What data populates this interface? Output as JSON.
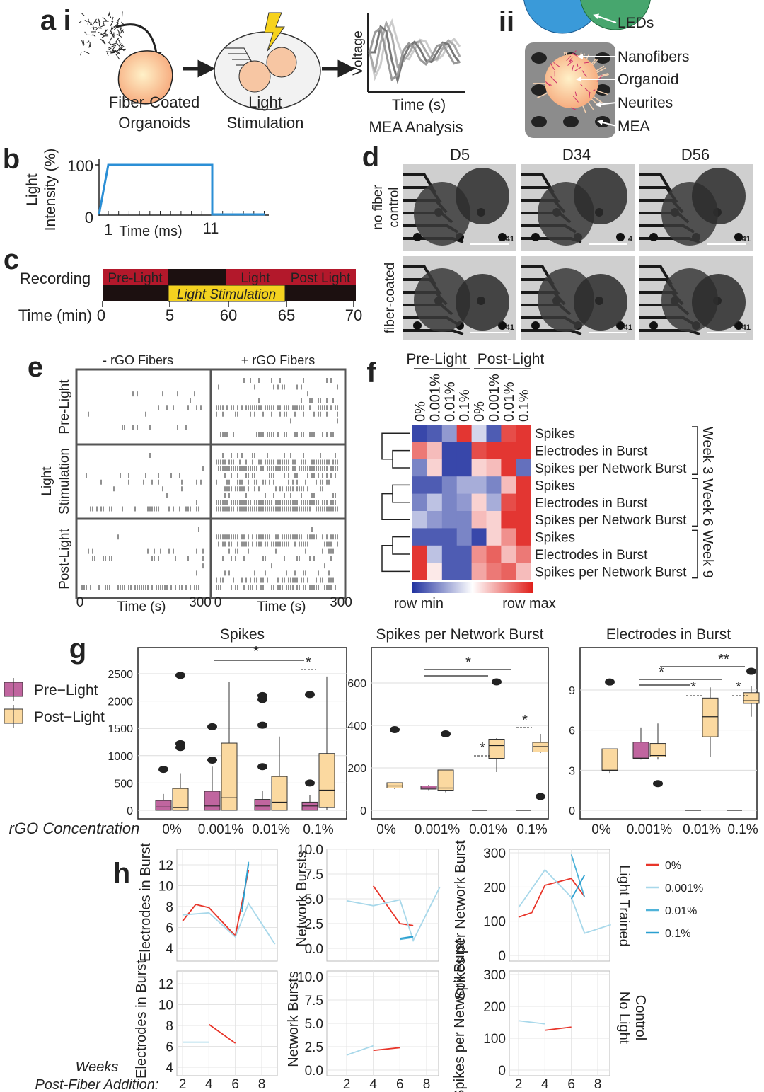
{
  "a": {
    "letter": "a",
    "sub_i": "i",
    "sub_ii": "ii",
    "organoids": [
      "Fiber-Coated",
      "Organoids"
    ],
    "stimulation": [
      "Light",
      "Stimulation"
    ],
    "voltage": "Voltage",
    "time": "Time (s)",
    "analysis": "MEA Analysis",
    "parts": [
      "LEDs",
      "Nanofibers",
      "Organoid",
      "Neurites",
      "MEA"
    ]
  },
  "b": {
    "letter": "b",
    "ylabel": [
      "Light",
      "Intensity (%)"
    ],
    "yticks": [
      "100",
      "0"
    ],
    "xticks": [
      "1",
      "11"
    ],
    "xlabel": "Time (ms)"
  },
  "c": {
    "letter": "c",
    "row": "Recording",
    "segments": [
      "Pre-Light",
      "Light Stimulation",
      "Light",
      "Post Light"
    ],
    "xlabel": "Time (min)",
    "xticks": [
      "0",
      "5",
      "60",
      "65",
      "70"
    ]
  },
  "d": {
    "letter": "d",
    "columns": [
      "D5",
      "D34",
      "D56"
    ],
    "rows": [
      [
        "no fiber",
        "control"
      ],
      [
        "fiber-coated"
      ]
    ],
    "scale_labels": [
      [
        "41",
        "4",
        "41"
      ],
      [
        "41",
        "41",
        "41"
      ]
    ]
  },
  "e": {
    "letter": "e",
    "columns": [
      "- rGO Fibers",
      "+ rGO Fibers"
    ],
    "rows": [
      [
        "Pre-Light"
      ],
      [
        "Light",
        "Stimulation"
      ],
      [
        "Post-Light"
      ]
    ],
    "xticks": [
      "0",
      "300"
    ],
    "xlabel": "Time (s)"
  },
  "f": {
    "letter": "f",
    "groups": [
      "Pre-Light",
      "Post-Light"
    ],
    "columns": [
      "0%",
      "0.001%",
      "0.01%",
      "0.1%"
    ],
    "rows": [
      "Spikes",
      "Electrodes in Burst",
      "Spikes per Network Burst"
    ],
    "weeks": [
      "Week 3",
      "Week 6",
      "Week 9"
    ],
    "scale": [
      "row min",
      "row max"
    ],
    "values": [
      [
        [
          -0.9,
          -0.8,
          -0.5,
          0.9,
          -0.2,
          -0.8,
          0.8,
          0.9
        ],
        [
          0.6,
          0.3,
          -0.9,
          -0.9,
          0.8,
          0.9,
          0.9,
          0.9
        ],
        [
          -0.6,
          0.2,
          -0.9,
          -0.9,
          0.2,
          0.3,
          0.9,
          -0.7
        ]
      ],
      [
        [
          -0.8,
          -0.8,
          -0.6,
          -0.4,
          -0.4,
          -0.6,
          0.3,
          0.9
        ],
        [
          -0.6,
          -0.3,
          -0.6,
          -0.5,
          0.2,
          -0.4,
          0.8,
          0.9
        ],
        [
          -0.3,
          -0.5,
          -0.6,
          -0.6,
          0.3,
          0.2,
          0.9,
          0.9
        ]
      ],
      [
        [
          -0.8,
          -0.8,
          -0.8,
          -0.6,
          -0.9,
          0.2,
          0.5,
          0.9
        ],
        [
          0.9,
          -0.3,
          -0.8,
          -0.8,
          0.5,
          0.7,
          0.3,
          0.6
        ],
        [
          0.9,
          0.1,
          -0.8,
          -0.8,
          0.4,
          0.6,
          0.7,
          0.3
        ]
      ]
    ]
  },
  "g": {
    "letter": "g",
    "legend": [
      "Pre−Light",
      "Post−Light"
    ],
    "colors": [
      "#c0659f",
      "#fbd9a0"
    ],
    "xlabel": "rGO Concentration",
    "categories": [
      "0%",
      "0.001%",
      "0.01%",
      "0.1%"
    ],
    "plots": [
      {
        "title": "Spikes",
        "yticks": [
          0,
          500,
          1000,
          1500,
          2000,
          2500
        ],
        "pre": [
          [
            0,
            0,
            60,
            180,
            300
          ],
          [
            0,
            0,
            80,
            350,
            800
          ],
          [
            0,
            0,
            80,
            200,
            350
          ],
          [
            0,
            0,
            80,
            150,
            280
          ]
        ],
        "post": [
          [
            0,
            0,
            50,
            400,
            680
          ],
          [
            0,
            0,
            230,
            1230,
            2350
          ],
          [
            0,
            0,
            150,
            620,
            1350
          ],
          [
            0,
            50,
            370,
            1040,
            2450
          ]
        ],
        "pre_outliers": [
          [
            750
          ],
          [
            920,
            1530
          ],
          [
            800,
            1560,
            2030,
            2100
          ],
          [
            500,
            2120
          ]
        ],
        "post_outliers": [
          [
            1150,
            1220,
            2470
          ],
          [],
          [],
          []
        ],
        "stars": [
          "*",
          "*"
        ]
      },
      {
        "title": "Spikes per Network Burst",
        "yticks": [
          0,
          200,
          400,
          600
        ],
        "pre": [
          null,
          [
            95,
            100,
            105,
            115,
            120
          ],
          [
            0,
            0,
            0,
            0,
            0
          ],
          [
            0,
            0,
            0,
            0,
            0
          ]
        ],
        "post": [
          [
            100,
            105,
            115,
            130,
            130
          ],
          [
            85,
            95,
            105,
            190,
            190
          ],
          [
            180,
            245,
            305,
            335,
            340
          ],
          [
            270,
            275,
            300,
            320,
            360
          ]
        ],
        "pre_outliers": [
          [],
          [],
          [],
          []
        ],
        "post_outliers": [
          [
            380
          ],
          [
            360
          ],
          [
            605
          ],
          [
            65
          ]
        ],
        "stars": [
          "*",
          "*",
          "*"
        ]
      },
      {
        "title": "Electrodes in Burst",
        "yticks": [
          0,
          3,
          6,
          9
        ],
        "pre": [
          null,
          [
            3.8,
            3.9,
            3.9,
            5.1,
            6.2
          ],
          [
            0,
            0,
            0,
            0,
            0
          ],
          [
            0,
            0,
            0,
            0,
            0
          ]
        ],
        "post": [
          [
            2.8,
            3,
            3,
            4.6,
            4.6
          ],
          [
            3.8,
            4,
            4.1,
            5,
            6.5
          ],
          [
            4,
            5.5,
            7,
            8.4,
            9.2
          ],
          [
            7,
            8,
            8.2,
            8.8,
            9.3
          ]
        ],
        "pre_outliers": [
          [],
          [],
          [],
          []
        ],
        "post_outliers": [
          [
            9.6
          ],
          [
            2
          ],
          [],
          [
            10.4
          ]
        ],
        "stars": [
          "**",
          "*",
          "*",
          "*"
        ]
      }
    ]
  },
  "h": {
    "letter": "h",
    "xlabel": [
      "Weeks",
      "Post-Fiber Addition:"
    ],
    "xticks": [
      2,
      4,
      6,
      8
    ],
    "series": [
      {
        "name": "0%",
        "color": "#e8352a"
      },
      {
        "name": "0.001%",
        "color": "#a8d8ea"
      },
      {
        "name": "0.01%",
        "color": "#4fb3d9"
      },
      {
        "name": "0.1%",
        "color": "#2a9fd0"
      }
    ],
    "row_labels": [
      [
        "Light Trained"
      ],
      [
        "No Light",
        "Control"
      ]
    ],
    "plots": [
      {
        "ylabel": "Electrodes in Burst",
        "yticks": [
          4,
          6,
          8,
          10,
          12
        ],
        "lines": [
          {
            "series": 0,
            "x": [
              2,
              3,
              4,
              6,
              7
            ],
            "values": [
              6.6,
              8.2,
              7.9,
              5.2,
              11.5
            ]
          },
          {
            "series": 1,
            "x": [
              2,
              4,
              6,
              7,
              9
            ],
            "values": [
              7.2,
              7.4,
              5.1,
              8.3,
              4.4
            ]
          },
          {
            "series": 2,
            "x": [
              6.5,
              7
            ],
            "values": [
              7.5,
              12.3
            ]
          },
          {
            "series": 3,
            "x": [
              6.5,
              7
            ],
            "values": [
              7.8,
              12.1
            ]
          }
        ]
      },
      {
        "ylabel": "Network Bursts",
        "yticks": [
          {
            "value": 0,
            "label": "0.0"
          },
          {
            "value": 2.5,
            "label": "2.5"
          },
          {
            "value": 5,
            "label": "5.0"
          },
          {
            "value": 7.5,
            "label": "7.5"
          },
          {
            "value": 10,
            "label": "10.0"
          }
        ],
        "lines": [
          {
            "series": 0,
            "x": [
              4,
              6,
              7
            ],
            "values": [
              6.3,
              2.5,
              2.3
            ]
          },
          {
            "series": 1,
            "x": [
              2,
              4,
              6,
              7,
              9
            ],
            "values": [
              4.8,
              4.3,
              4.9,
              0.8,
              6.2
            ]
          },
          {
            "series": 2,
            "x": [
              6,
              7
            ],
            "values": [
              0.9,
              1.1
            ]
          },
          {
            "series": 3,
            "x": [
              6,
              7
            ],
            "values": [
              1,
              1.2
            ]
          }
        ]
      },
      {
        "ylabel": "Spikes per Network Burst",
        "yticks": [
          0,
          100,
          200,
          300
        ],
        "lines": [
          {
            "series": 0,
            "x": [
              2,
              3,
              4,
              6,
              7
            ],
            "values": [
              112,
              125,
              205,
              225,
              172
            ]
          },
          {
            "series": 1,
            "x": [
              2,
              4,
              6,
              7,
              9
            ],
            "values": [
              140,
              250,
              170,
              65,
              90
            ]
          },
          {
            "series": 2,
            "x": [
              6,
              7
            ],
            "values": [
              295,
              170
            ]
          },
          {
            "series": 3,
            "x": [
              6,
              7
            ],
            "values": [
              165,
              235
            ]
          }
        ]
      },
      {
        "ylabel": "Electrodes in Burst",
        "yticks": [
          4,
          6,
          8,
          10,
          12
        ],
        "lines": [
          {
            "series": 1,
            "x": [
              2,
              4
            ],
            "values": [
              6.4,
              6.4
            ]
          },
          {
            "series": 0,
            "x": [
              4,
              6
            ],
            "values": [
              8.1,
              6.3
            ]
          }
        ]
      },
      {
        "ylabel": "Network Bursts",
        "yticks": [
          {
            "value": 0,
            "label": "0.0"
          },
          {
            "value": 2.5,
            "label": "2.5"
          },
          {
            "value": 5,
            "label": "5.0"
          },
          {
            "value": 7.5,
            "label": "7.5"
          },
          {
            "value": 10,
            "label": "10.0"
          }
        ],
        "lines": [
          {
            "series": 1,
            "x": [
              2,
              4
            ],
            "values": [
              1.6,
              2.6
            ]
          },
          {
            "series": 0,
            "x": [
              4,
              6
            ],
            "values": [
              2.1,
              2.4
            ]
          }
        ]
      },
      {
        "ylabel": "Spikes per Network Burst",
        "yticks": [
          0,
          100,
          200,
          300
        ],
        "lines": [
          {
            "series": 1,
            "x": [
              2,
              4
            ],
            "values": [
              155,
              145
            ]
          },
          {
            "series": 0,
            "x": [
              4,
              6
            ],
            "values": [
              125,
              135
            ]
          }
        ]
      }
    ]
  }
}
